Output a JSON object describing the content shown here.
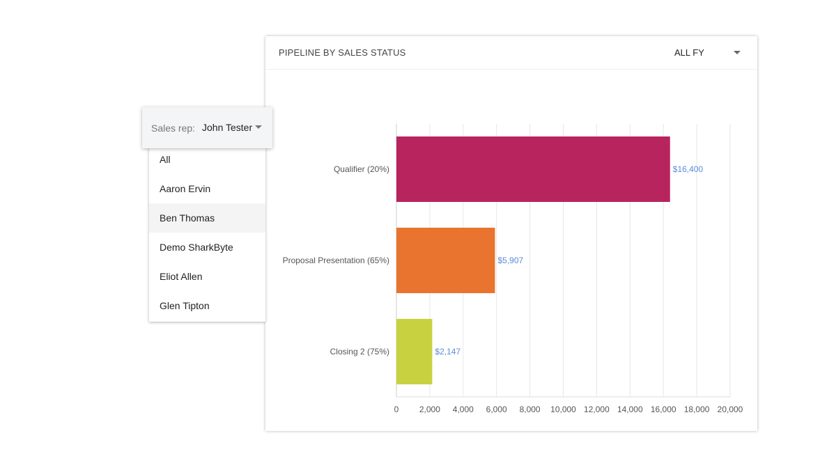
{
  "card": {
    "title": "PIPELINE BY SALES STATUS",
    "period": "ALL FY"
  },
  "sales_rep": {
    "label": "Sales rep:",
    "value": "John Tester",
    "options": [
      "All",
      "Aaron Ervin",
      "Ben Thomas",
      "Demo SharkByte",
      "Eliot Allen",
      "Glen Tipton"
    ],
    "highlighted": "Ben Thomas"
  },
  "chart_data": {
    "type": "bar",
    "orientation": "horizontal",
    "categories": [
      "Qualifier (20%)",
      "Proposal Presentation (65%)",
      "Closing 2 (75%)"
    ],
    "values": [
      16400,
      5907,
      2147
    ],
    "data_labels": [
      "$16,400",
      "$5,907",
      "$2,147"
    ],
    "colors": [
      "#b8245e",
      "#e8742f",
      "#c8d140"
    ],
    "label_color": "#5b8bd6",
    "xlim": [
      0,
      20000
    ],
    "xticks": [
      "0",
      "2,000",
      "4,000",
      "6,000",
      "8,000",
      "10,000",
      "12,000",
      "14,000",
      "16,000",
      "18,000",
      "20,000"
    ],
    "grid": true
  }
}
